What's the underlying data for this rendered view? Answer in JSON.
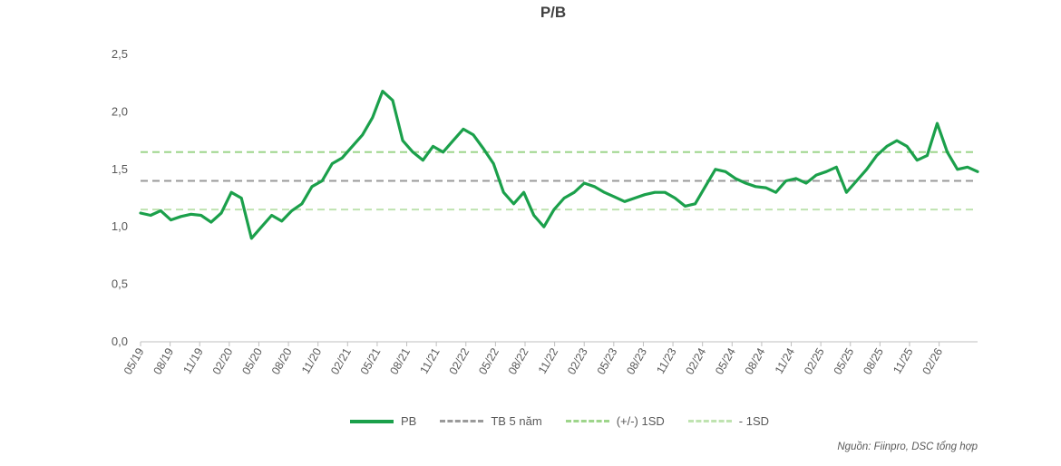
{
  "colors": {
    "pb": "#1BA04B",
    "mean": "#9A9A9A",
    "plus_sd": "#9ED58B",
    "minus_sd": "#BFE3B0",
    "axis": "#BFBFBF"
  },
  "chart_data": {
    "type": "line",
    "title": "P/B",
    "ylim": [
      0,
      2.5
    ],
    "y_ticks": [
      "0,0",
      "0,5",
      "1,0",
      "1,5",
      "2,0",
      "2,5"
    ],
    "x_ticks": [
      "05/19",
      "08/19",
      "11/19",
      "02/20",
      "05/20",
      "08/20",
      "11/20",
      "02/21",
      "05/21",
      "08/21",
      "11/21",
      "02/22",
      "05/22",
      "08/22",
      "11/22",
      "02/23",
      "05/23",
      "08/23",
      "11/23",
      "02/24",
      "05/24",
      "08/24",
      "11/24",
      "02/25",
      "05/25",
      "08/25",
      "11/25",
      "02/26"
    ],
    "grid": false,
    "legend_position": "bottom",
    "series": [
      {
        "name": "PB",
        "style": "solid",
        "x": [
          "2019-05",
          "2019-06",
          "2019-07",
          "2019-08",
          "2019-09",
          "2019-10",
          "2019-11",
          "2019-12",
          "2020-01",
          "2020-02",
          "2020-03",
          "2020-04",
          "2020-05",
          "2020-06",
          "2020-07",
          "2020-08",
          "2020-09",
          "2020-10",
          "2020-11",
          "2020-12",
          "2021-01",
          "2021-02",
          "2021-03",
          "2021-04",
          "2021-05",
          "2021-06",
          "2021-07",
          "2021-08",
          "2021-09",
          "2021-10",
          "2021-11",
          "2021-12",
          "2022-01",
          "2022-02",
          "2022-03",
          "2022-04",
          "2022-05",
          "2022-06",
          "2022-07",
          "2022-08",
          "2022-09",
          "2022-10",
          "2022-11",
          "2022-12",
          "2023-01",
          "2023-02",
          "2023-03",
          "2023-04",
          "2023-05",
          "2023-06",
          "2023-07",
          "2023-08",
          "2023-09",
          "2023-10",
          "2023-11",
          "2023-12",
          "2024-01",
          "2024-02",
          "2024-03",
          "2024-04",
          "2024-05",
          "2024-06",
          "2024-07",
          "2024-08",
          "2024-09",
          "2024-10",
          "2024-11",
          "2024-12",
          "2025-01",
          "2025-02",
          "2025-03",
          "2025-04",
          "2025-05",
          "2025-06",
          "2025-07",
          "2025-08",
          "2025-09",
          "2025-10",
          "2025-11",
          "2025-12",
          "2026-01",
          "2026-02",
          "2026-03",
          "2026-04"
        ],
        "values": [
          1.12,
          1.1,
          1.14,
          1.06,
          1.09,
          1.11,
          1.1,
          1.04,
          1.12,
          1.3,
          1.25,
          0.9,
          1.0,
          1.1,
          1.05,
          1.14,
          1.2,
          1.35,
          1.4,
          1.55,
          1.6,
          1.7,
          1.8,
          1.95,
          2.18,
          2.1,
          1.75,
          1.65,
          1.58,
          1.7,
          1.65,
          1.75,
          1.85,
          1.8,
          1.68,
          1.55,
          1.3,
          1.2,
          1.3,
          1.1,
          1.0,
          1.15,
          1.25,
          1.3,
          1.38,
          1.35,
          1.3,
          1.26,
          1.22,
          1.25,
          1.28,
          1.3,
          1.3,
          1.25,
          1.18,
          1.2,
          1.35,
          1.5,
          1.48,
          1.42,
          1.38,
          1.35,
          1.34,
          1.3,
          1.4,
          1.42,
          1.38,
          1.45,
          1.48,
          1.52,
          1.3,
          1.4,
          1.5,
          1.62,
          1.7,
          1.75,
          1.7,
          1.58,
          1.62,
          1.9,
          1.65,
          1.5,
          1.52,
          1.48
        ]
      },
      {
        "name": "TB 5 năm",
        "style": "dashed",
        "value": 1.4
      },
      {
        "name": "(+/-) 1SD",
        "style": "dashed",
        "value": 1.65
      },
      {
        "name": "- 1SD",
        "style": "dashed",
        "value": 1.15
      }
    ],
    "source": "Nguồn: Fiinpro, DSC tổng hợp"
  }
}
